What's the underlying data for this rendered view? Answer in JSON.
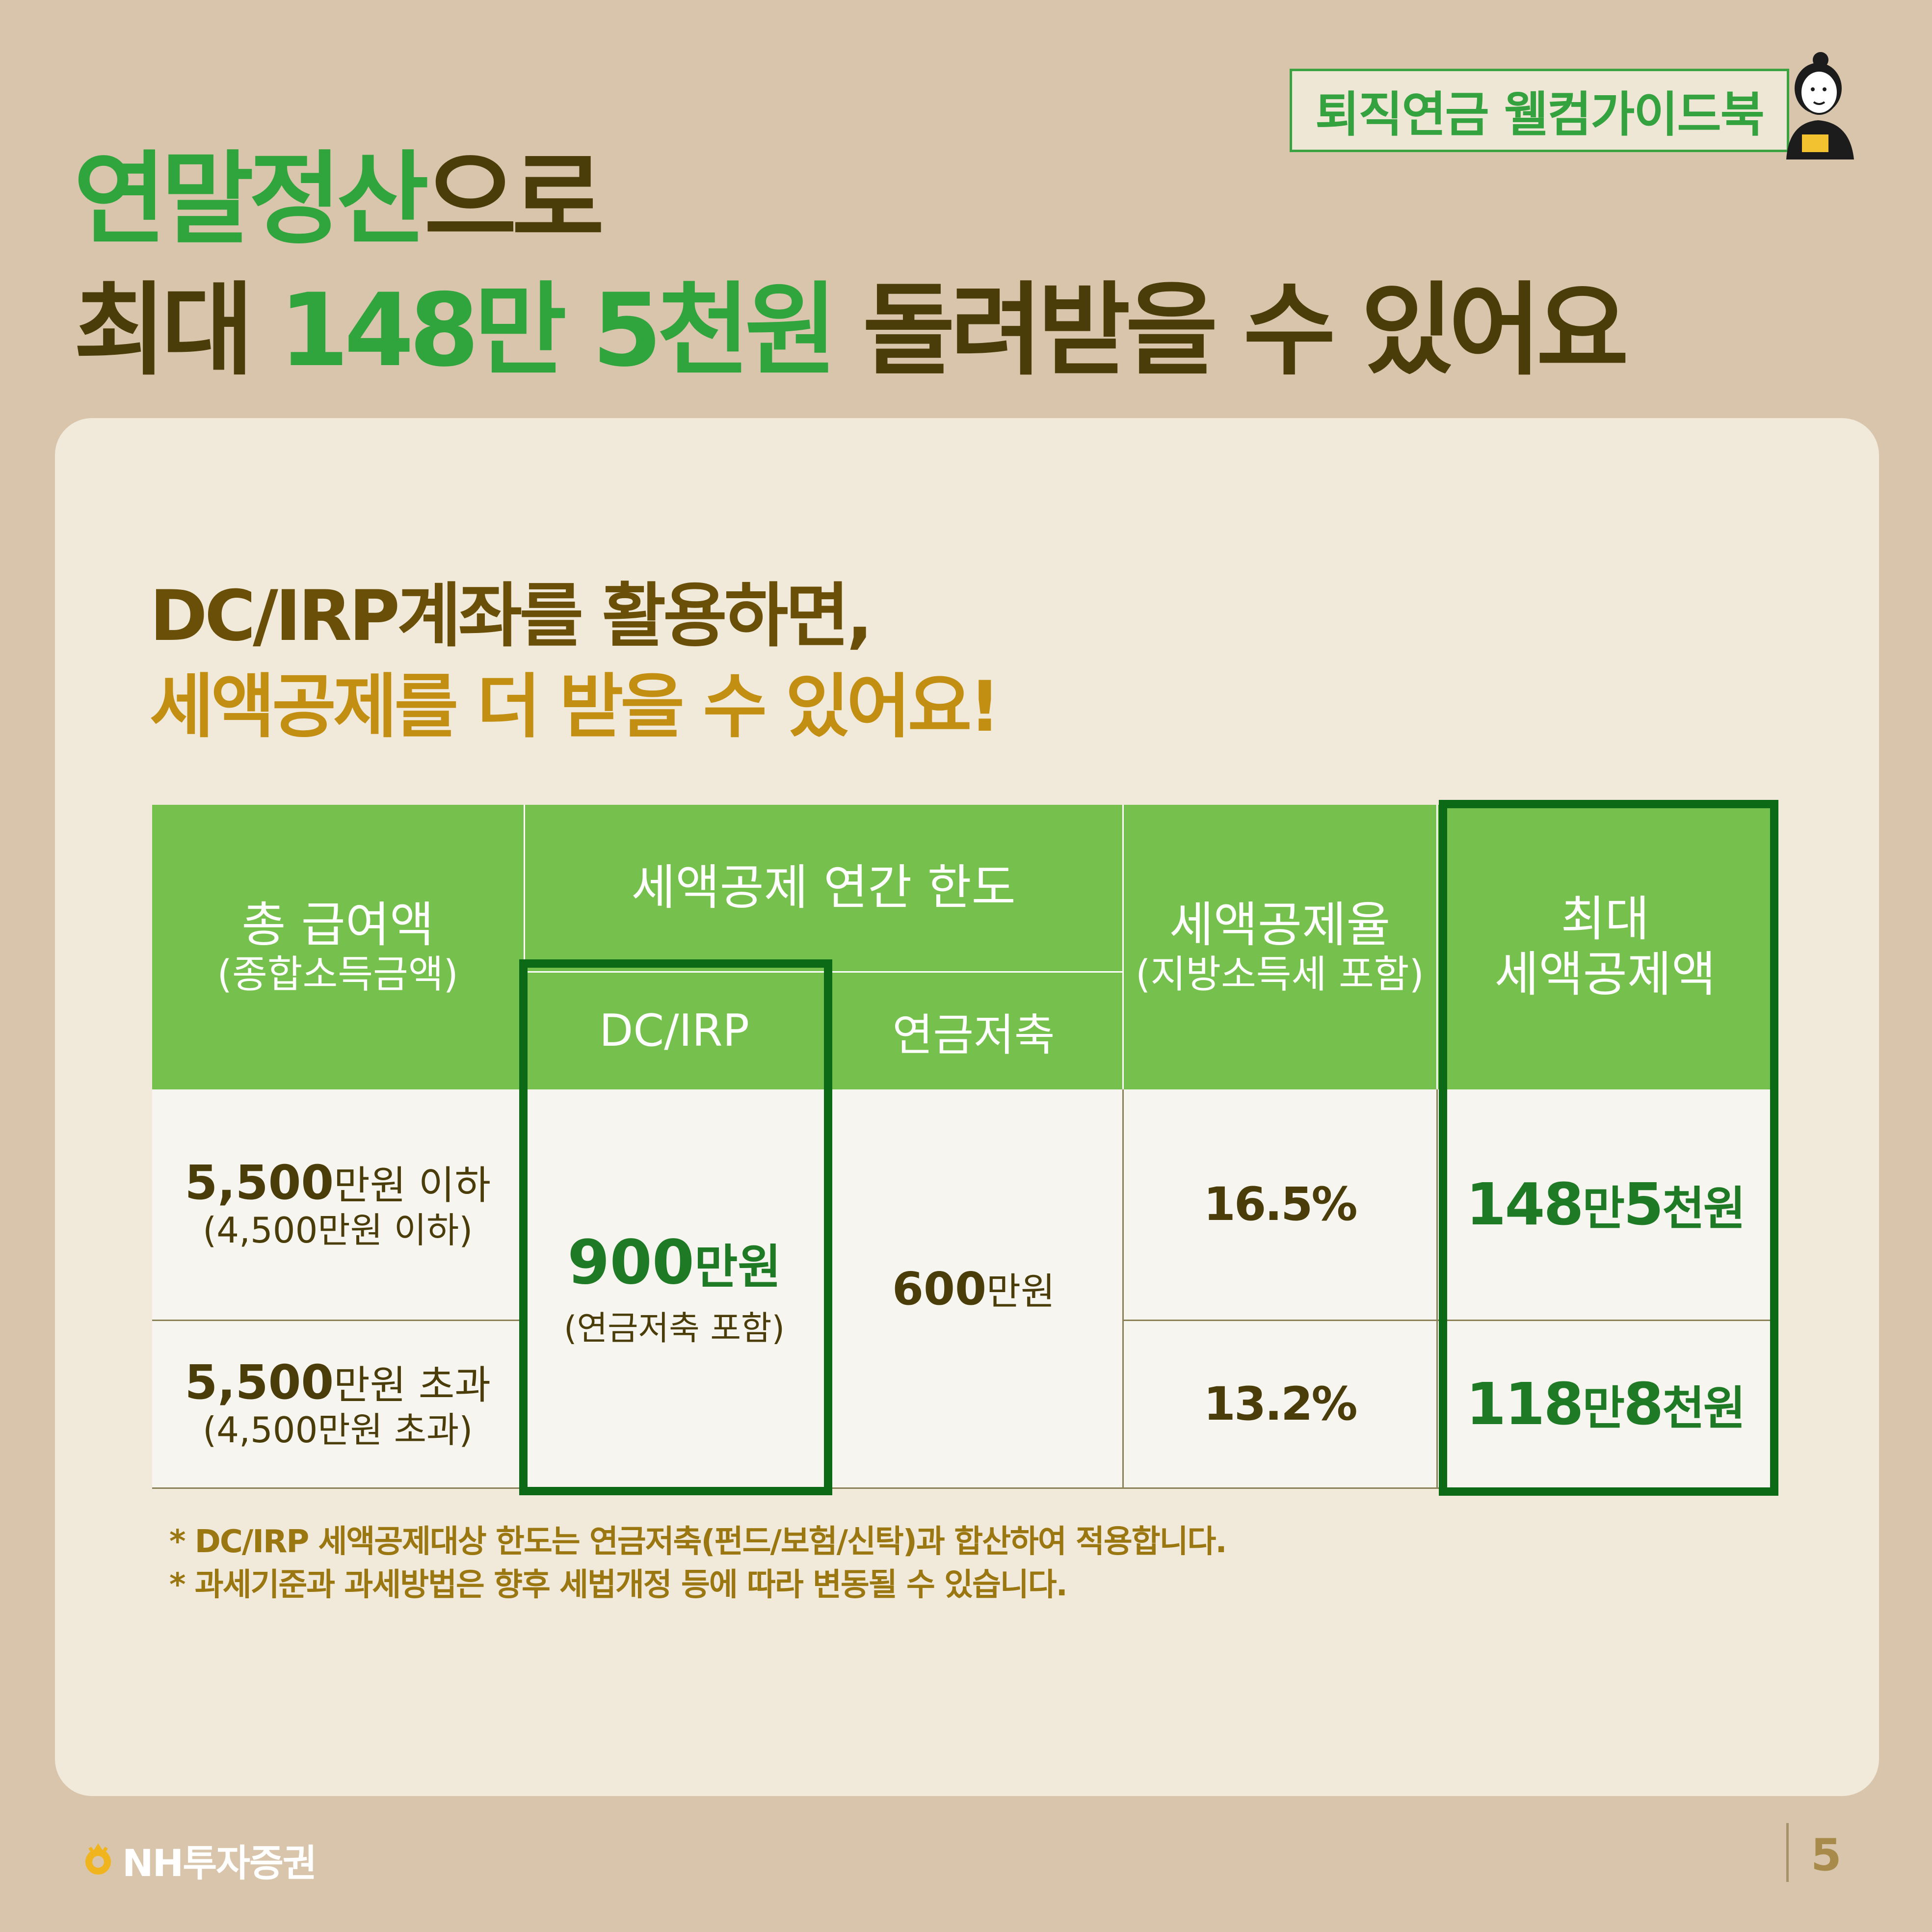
{
  "badge": "퇴직연금 웰컴가이드북",
  "title": {
    "line1_green": "연말정산",
    "line1_rest": "으로",
    "line2_a": "최대 ",
    "line2_green": "148만 5천원",
    "line2_b": " 돌려받을 수 있어요"
  },
  "subtitle": {
    "line1": "DC/IRP계좌를 활용하면,",
    "line2": "세액공제를 더 받을 수 있어요!"
  },
  "table": {
    "headers": {
      "col1_main": "총 급여액",
      "col1_sub": "(종합소득금액)",
      "limit_group": "세액공제 연간 한도",
      "dc_irp": "DC/IRP",
      "pension": "연금저축",
      "rate_main": "세액공제율",
      "rate_sub": "(지방소득세 포함)",
      "max_line1": "최대",
      "max_line2": "세액공제액"
    },
    "rows": [
      {
        "income_num": "5,500",
        "income_text": "만원 이하",
        "income_sub": "(4,500만원 이하)",
        "rate": "16.5%",
        "max_a": "148",
        "max_b": "만",
        "max_c": "5",
        "max_d": "천원"
      },
      {
        "income_num": "5,500",
        "income_text": "만원 초과",
        "income_sub": "(4,500만원 초과)",
        "rate": "13.2%",
        "max_a": "118",
        "max_b": "만",
        "max_c": "8",
        "max_d": "천원"
      }
    ],
    "dc_value_num": "900",
    "dc_value_unit": "만원",
    "dc_value_sub": "(연금저축 포함)",
    "pension_value_num": "600",
    "pension_value_unit": "만원"
  },
  "notes": [
    "* DC/IRP 세액공제대상 한도는 연금저축(펀드/보험/신탁)과 합산하여 적용합니다.",
    "* 과세기준과 과세방법은 향후 세법개정 등에 따라 변동될 수 있습니다."
  ],
  "footer": {
    "brand": "NH투자증권",
    "page": "5"
  },
  "colors": {
    "background": "#d8c5ab",
    "card": "#f1e9d9",
    "green_accent": "#30a43d",
    "header_green": "#76c04d",
    "highlight_border": "#0c6a16",
    "brown_text": "#4a3d0a",
    "gold_text": "#c28f12"
  },
  "icons": [
    "mascot-illustration",
    "nh-logo-icon"
  ]
}
